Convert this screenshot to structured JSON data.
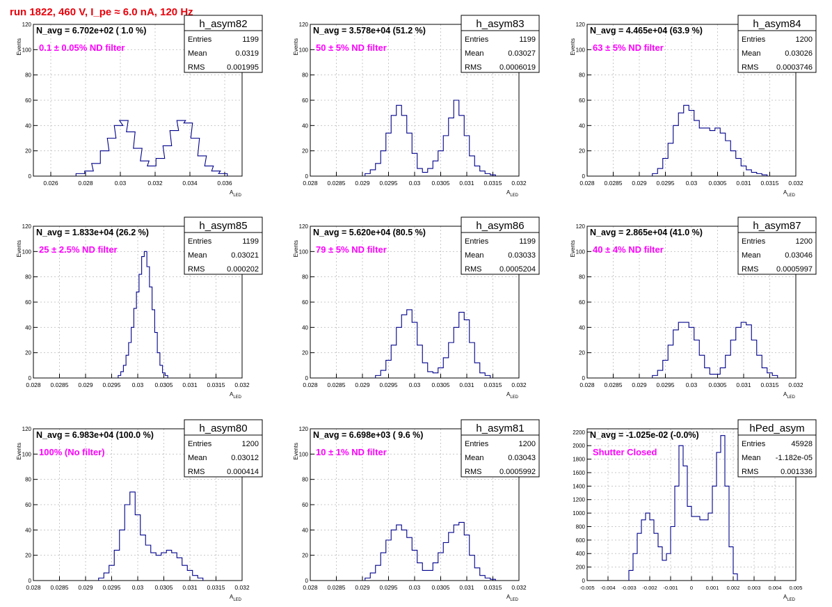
{
  "page_title": "run 1822,   460 V, I_pe ≈ 6.0 nA, 120 Hz",
  "colors": {
    "title": "#e8000b",
    "hist": "#00008b",
    "annot": "#ff00ff",
    "grid": "#c8c8c8"
  },
  "chart_data": [
    {
      "type": "histogram",
      "name": "h_asym82",
      "navg": "N_avg = 6.702e+02 ( 1.0 %)",
      "filter": "0.1 ± 0.05% ND filter",
      "stats": {
        "Entries": "1199",
        "Mean": "0.0319",
        "RMS": "0.001995"
      },
      "xlim": [
        0.025,
        0.037
      ],
      "ylim": [
        0,
        120
      ],
      "xticks": [
        0.026,
        0.028,
        0.03,
        0.032,
        0.034,
        0.036
      ],
      "xtick_labels": [
        "0.026",
        "0.028",
        "0.03",
        "0.032",
        "0.034",
        "0.036"
      ],
      "yticks": [
        0,
        20,
        40,
        60,
        80,
        100,
        120
      ],
      "xlabel": "A_LED",
      "ylabel": "Events",
      "grid": true,
      "x": [
        0.0277,
        0.0282,
        0.0286,
        0.0291,
        0.0295,
        0.0299,
        0.0302,
        0.0306,
        0.031,
        0.0314,
        0.0318,
        0.0323,
        0.0327,
        0.0331,
        0.0335,
        0.0339,
        0.0343,
        0.0347,
        0.0351,
        0.0355,
        0.0359
      ],
      "y": [
        2,
        4,
        10,
        20,
        30,
        40,
        44,
        35,
        22,
        12,
        8,
        14,
        24,
        36,
        44,
        42,
        30,
        16,
        8,
        4,
        2
      ]
    },
    {
      "type": "histogram",
      "name": "h_asym83",
      "navg": "N_avg = 3.578e+04 (51.2 %)",
      "filter": "50 ± 5% ND filter",
      "stats": {
        "Entries": "1199",
        "Mean": "0.03027",
        "RMS": "0.0006019"
      },
      "xlim": [
        0.028,
        0.032
      ],
      "ylim": [
        0,
        120
      ],
      "xticks": [
        0.028,
        0.0285,
        0.029,
        0.0295,
        0.03,
        0.0305,
        0.031,
        0.0315,
        0.032
      ],
      "xtick_labels": [
        "0.028",
        "0.0285",
        "0.029",
        "0.0295",
        "0.03",
        "0.0305",
        "0.031",
        "0.0315",
        "0.032"
      ],
      "yticks": [
        0,
        20,
        40,
        60,
        80,
        100,
        120
      ],
      "xlabel": "A_LED",
      "ylabel": "Events",
      "grid": true,
      "x": [
        0.0291,
        0.0292,
        0.0293,
        0.0294,
        0.0295,
        0.0296,
        0.0297,
        0.0298,
        0.0299,
        0.03,
        0.0301,
        0.0302,
        0.0303,
        0.0304,
        0.0305,
        0.0306,
        0.0307,
        0.0308,
        0.0309,
        0.031,
        0.0311,
        0.0312,
        0.0313,
        0.0314,
        0.0315
      ],
      "y": [
        2,
        5,
        10,
        20,
        34,
        48,
        56,
        48,
        34,
        18,
        6,
        3,
        6,
        12,
        20,
        32,
        46,
        60,
        48,
        32,
        16,
        8,
        4,
        2,
        1
      ]
    },
    {
      "type": "histogram",
      "name": "h_asym84",
      "navg": "N_avg = 4.465e+04 (63.9 %)",
      "filter": "63 ± 5% ND filter",
      "stats": {
        "Entries": "1200",
        "Mean": "0.03026",
        "RMS": "0.0003746"
      },
      "xlim": [
        0.028,
        0.032
      ],
      "ylim": [
        0,
        120
      ],
      "xticks": [
        0.028,
        0.0285,
        0.029,
        0.0295,
        0.03,
        0.0305,
        0.031,
        0.0315,
        0.032
      ],
      "xtick_labels": [
        "0.028",
        "0.0285",
        "0.029",
        "0.0295",
        "0.03",
        "0.0305",
        "0.031",
        "0.0315",
        "0.032"
      ],
      "yticks": [
        0,
        20,
        40,
        60,
        80,
        100,
        120
      ],
      "xlabel": "A_LED",
      "ylabel": "Events",
      "grid": true,
      "x": [
        0.0293,
        0.0294,
        0.0295,
        0.0296,
        0.0297,
        0.0298,
        0.0299,
        0.03,
        0.0301,
        0.0302,
        0.0303,
        0.0304,
        0.0305,
        0.0306,
        0.0307,
        0.0308,
        0.0309,
        0.031,
        0.0311,
        0.0312,
        0.0313,
        0.0314
      ],
      "y": [
        2,
        6,
        14,
        26,
        40,
        50,
        56,
        52,
        44,
        38,
        38,
        36,
        38,
        34,
        28,
        20,
        14,
        8,
        5,
        3,
        2,
        1
      ]
    },
    {
      "type": "histogram",
      "name": "h_asym85",
      "navg": "N_avg = 1.833e+04 (26.2 %)",
      "filter": "25 ± 2.5% ND filter",
      "stats": {
        "Entries": "1199",
        "Mean": "0.03021",
        "RMS": "0.000202"
      },
      "xlim": [
        0.028,
        0.032
      ],
      "ylim": [
        0,
        120
      ],
      "xticks": [
        0.028,
        0.0285,
        0.029,
        0.0295,
        0.03,
        0.0305,
        0.031,
        0.0315,
        0.032
      ],
      "xtick_labels": [
        "0.028",
        "0.0285",
        "0.029",
        "0.0295",
        "0.03",
        "0.0305",
        "0.031",
        "0.0315",
        "0.032"
      ],
      "yticks": [
        0,
        20,
        40,
        60,
        80,
        100,
        120
      ],
      "xlabel": "A_LED",
      "ylabel": "Events",
      "grid": true,
      "x": [
        0.02965,
        0.0297,
        0.02975,
        0.0298,
        0.02985,
        0.0299,
        0.02995,
        0.03,
        0.03005,
        0.0301,
        0.03015,
        0.0302,
        0.03025,
        0.0303,
        0.03035,
        0.0304,
        0.03045,
        0.0305,
        0.03055
      ],
      "y": [
        2,
        5,
        10,
        18,
        28,
        40,
        55,
        68,
        82,
        96,
        100,
        88,
        72,
        54,
        36,
        20,
        10,
        4,
        2
      ]
    },
    {
      "type": "histogram",
      "name": "h_asym86",
      "navg": "N_avg = 5.620e+04 (80.5 %)",
      "filter": "79 ± 5% ND filter",
      "stats": {
        "Entries": "1199",
        "Mean": "0.03033",
        "RMS": "0.0005204"
      },
      "xlim": [
        0.028,
        0.032
      ],
      "ylim": [
        0,
        120
      ],
      "xticks": [
        0.028,
        0.0285,
        0.029,
        0.0295,
        0.03,
        0.0305,
        0.031,
        0.0315,
        0.032
      ],
      "xtick_labels": [
        "0.028",
        "0.0285",
        "0.029",
        "0.0295",
        "0.03",
        "0.0305",
        "0.031",
        "0.0315",
        "0.032"
      ],
      "yticks": [
        0,
        20,
        40,
        60,
        80,
        100,
        120
      ],
      "xlabel": "A_LED",
      "ylabel": "Events",
      "grid": true,
      "x": [
        0.0293,
        0.0294,
        0.0295,
        0.0296,
        0.0297,
        0.0298,
        0.0299,
        0.03,
        0.0301,
        0.0302,
        0.0303,
        0.0304,
        0.0305,
        0.0306,
        0.0307,
        0.0308,
        0.0309,
        0.031,
        0.0311,
        0.0312,
        0.0313,
        0.0314
      ],
      "y": [
        2,
        6,
        14,
        26,
        40,
        50,
        54,
        44,
        26,
        12,
        5,
        4,
        8,
        16,
        28,
        40,
        52,
        46,
        28,
        12,
        4,
        2
      ]
    },
    {
      "type": "histogram",
      "name": "h_asym87",
      "navg": "N_avg = 2.865e+04 (41.0 %)",
      "filter": "40 ± 4% ND filter",
      "stats": {
        "Entries": "1200",
        "Mean": "0.03046",
        "RMS": "0.0005997"
      },
      "xlim": [
        0.028,
        0.032
      ],
      "ylim": [
        0,
        120
      ],
      "xticks": [
        0.028,
        0.0285,
        0.029,
        0.0295,
        0.03,
        0.0305,
        0.031,
        0.0315,
        0.032
      ],
      "xtick_labels": [
        "0.028",
        "0.0285",
        "0.029",
        "0.0295",
        "0.03",
        "0.0305",
        "0.031",
        "0.0315",
        "0.032"
      ],
      "yticks": [
        0,
        20,
        40,
        60,
        80,
        100,
        120
      ],
      "xlabel": "A_LED",
      "ylabel": "Events",
      "grid": true,
      "x": [
        0.0293,
        0.0294,
        0.0295,
        0.0296,
        0.0297,
        0.0298,
        0.0299,
        0.03,
        0.0301,
        0.0302,
        0.0303,
        0.0304,
        0.0305,
        0.0306,
        0.0307,
        0.0308,
        0.0309,
        0.031,
        0.0311,
        0.0312,
        0.0313,
        0.0314,
        0.0315,
        0.0316
      ],
      "y": [
        2,
        6,
        14,
        26,
        38,
        44,
        44,
        40,
        30,
        18,
        8,
        3,
        3,
        8,
        18,
        30,
        40,
        44,
        42,
        30,
        18,
        8,
        4,
        2
      ]
    },
    {
      "type": "histogram",
      "name": "h_asym80",
      "navg": "N_avg = 6.983e+04 (100.0 %)",
      "filter": "100% (No filter)",
      "stats": {
        "Entries": "1200",
        "Mean": "0.03012",
        "RMS": "0.000414"
      },
      "xlim": [
        0.028,
        0.032
      ],
      "ylim": [
        0,
        120
      ],
      "xticks": [
        0.028,
        0.0285,
        0.029,
        0.0295,
        0.03,
        0.0305,
        0.031,
        0.0315,
        0.032
      ],
      "xtick_labels": [
        "0.028",
        "0.0285",
        "0.029",
        "0.0295",
        "0.03",
        "0.0305",
        "0.031",
        "0.0315",
        "0.032"
      ],
      "yticks": [
        0,
        20,
        40,
        60,
        80,
        100,
        120
      ],
      "xlabel": "A_LED",
      "ylabel": "Events",
      "grid": true,
      "x": [
        0.0293,
        0.0294,
        0.0295,
        0.0296,
        0.0297,
        0.0298,
        0.0299,
        0.03,
        0.0301,
        0.0302,
        0.0303,
        0.0304,
        0.0305,
        0.0306,
        0.0307,
        0.0308,
        0.0309,
        0.031,
        0.0311,
        0.0312
      ],
      "y": [
        2,
        6,
        12,
        24,
        40,
        60,
        70,
        52,
        36,
        28,
        22,
        20,
        22,
        24,
        22,
        18,
        12,
        8,
        4,
        2
      ]
    },
    {
      "type": "histogram",
      "name": "h_asym81",
      "navg": "N_avg = 6.698e+03 ( 9.6 %)",
      "filter": "10 ± 1% ND filter",
      "stats": {
        "Entries": "1200",
        "Mean": "0.03043",
        "RMS": "0.0005992"
      },
      "xlim": [
        0.028,
        0.032
      ],
      "ylim": [
        0,
        120
      ],
      "xticks": [
        0.028,
        0.0285,
        0.029,
        0.0295,
        0.03,
        0.0305,
        0.031,
        0.0315,
        0.032
      ],
      "xtick_labels": [
        "0.028",
        "0.0285",
        "0.029",
        "0.0295",
        "0.03",
        "0.0305",
        "0.031",
        "0.0315",
        "0.032"
      ],
      "yticks": [
        0,
        20,
        40,
        60,
        80,
        100,
        120
      ],
      "xlabel": "A_LED",
      "ylabel": "Events",
      "grid": true,
      "x": [
        0.0291,
        0.0292,
        0.0293,
        0.0294,
        0.0295,
        0.0296,
        0.0297,
        0.0298,
        0.0299,
        0.03,
        0.0301,
        0.0302,
        0.0303,
        0.0304,
        0.0305,
        0.0306,
        0.0307,
        0.0308,
        0.0309,
        0.031,
        0.0311,
        0.0312,
        0.0313,
        0.0314,
        0.0315
      ],
      "y": [
        2,
        6,
        12,
        22,
        32,
        40,
        44,
        40,
        34,
        24,
        14,
        8,
        8,
        14,
        22,
        30,
        38,
        44,
        46,
        36,
        20,
        10,
        4,
        2,
        1
      ]
    },
    {
      "type": "histogram",
      "name": "hPed_asym",
      "navg": "N_avg = -1.025e-02 (-0.0%)",
      "filter": "Shutter Closed",
      "stats": {
        "Entries": "45928",
        "Mean": "-1.182e-05",
        "RMS": "0.001336"
      },
      "xlim": [
        -0.005,
        0.005
      ],
      "ylim": [
        0,
        2250
      ],
      "xticks": [
        -0.005,
        -0.004,
        -0.003,
        -0.002,
        -0.001,
        0,
        0.001,
        0.002,
        0.003,
        0.004,
        0.005
      ],
      "xtick_labels": [
        "-0.005",
        "-0.004",
        "-0.003",
        "-0.002",
        "-0.001",
        "0",
        "0.001",
        "0.002",
        "0.003",
        "0.004",
        "0.005"
      ],
      "yticks": [
        0,
        200,
        400,
        600,
        800,
        1000,
        1200,
        1400,
        1600,
        1800,
        2000,
        2200
      ],
      "xlabel": "A_LED",
      "ylabel": "",
      "grid": true,
      "x": [
        -0.0029,
        -0.0027,
        -0.0025,
        -0.0023,
        -0.0021,
        -0.0019,
        -0.0017,
        -0.0015,
        -0.0013,
        -0.0011,
        -0.0009,
        -0.0007,
        -0.0005,
        -0.0003,
        -0.0001,
        0.0001,
        0.0003,
        0.0005,
        0.0007,
        0.0009,
        0.0011,
        0.0013,
        0.0015,
        0.0017,
        0.0019,
        0.0021
      ],
      "y": [
        150,
        400,
        700,
        900,
        1000,
        900,
        700,
        500,
        300,
        400,
        800,
        1400,
        2000,
        1700,
        1100,
        950,
        950,
        900,
        900,
        1000,
        1400,
        1900,
        2150,
        1400,
        500,
        100
      ]
    }
  ]
}
